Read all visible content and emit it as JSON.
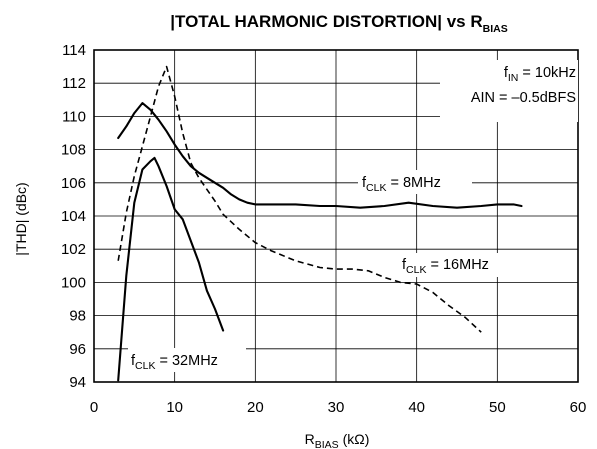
{
  "chart_data": {
    "type": "line",
    "title": {
      "prefix": "|TOTAL HARMONIC DISTORTION| vs R",
      "sub": "BIAS"
    },
    "xlabel": {
      "prefix": "R",
      "sub": "BIAS",
      "suffix": " (kΩ)"
    },
    "ylabel": "|THD| (dBc)",
    "xlim": [
      0,
      60
    ],
    "ylim": [
      94,
      114
    ],
    "x_ticks": [
      0,
      10,
      20,
      30,
      40,
      50,
      60
    ],
    "y_ticks": [
      94,
      96,
      98,
      100,
      102,
      104,
      106,
      108,
      110,
      112,
      114
    ],
    "grid": true,
    "conditions": [
      {
        "prefix": "f",
        "sub": "IN",
        "suffix": " = 10kHz"
      },
      {
        "prefix": "AIN = –0.5dBFS",
        "sub": "",
        "suffix": ""
      }
    ],
    "series": [
      {
        "name": {
          "prefix": "f",
          "sub": "CLK",
          "suffix": " = 8MHz"
        },
        "style": "solid",
        "x": [
          3,
          4,
          5,
          6,
          7,
          8,
          9,
          10,
          11,
          12,
          13,
          14,
          15,
          16,
          17,
          18,
          19,
          20,
          22,
          25,
          28,
          30,
          33,
          36,
          39,
          42,
          45,
          48,
          50,
          52,
          53
        ],
        "y": [
          108.7,
          109.4,
          110.2,
          110.8,
          110.4,
          109.8,
          109.1,
          108.3,
          107.6,
          107.0,
          106.6,
          106.3,
          106.0,
          105.7,
          105.3,
          105.0,
          104.8,
          104.7,
          104.7,
          104.7,
          104.6,
          104.6,
          104.5,
          104.6,
          104.8,
          104.6,
          104.5,
          104.6,
          104.7,
          104.7,
          104.6
        ]
      },
      {
        "name": {
          "prefix": "f",
          "sub": "CLK",
          "suffix": " = 16MHz"
        },
        "style": "dashed",
        "x": [
          3,
          4,
          5,
          6,
          7,
          8,
          9,
          10,
          11,
          12,
          13,
          14,
          15,
          16,
          18,
          20,
          22,
          25,
          28,
          30,
          32,
          34,
          36,
          38,
          40,
          42,
          44,
          46,
          48
        ],
        "y": [
          101.3,
          104.2,
          106.4,
          108.2,
          110.0,
          111.8,
          113.0,
          111.2,
          109.0,
          107.2,
          106.3,
          105.6,
          104.9,
          104.1,
          103.2,
          102.4,
          101.9,
          101.3,
          100.9,
          100.8,
          100.8,
          100.7,
          100.3,
          100.0,
          99.9,
          99.4,
          98.6,
          97.9,
          97.0
        ]
      },
      {
        "name": {
          "prefix": "f",
          "sub": "CLK",
          "suffix": " = 32MHz"
        },
        "style": "solid",
        "x": [
          3,
          4,
          5,
          6,
          7,
          7.5,
          8,
          9,
          10,
          11,
          12,
          13,
          14,
          15,
          16
        ],
        "y": [
          94.1,
          100.4,
          104.8,
          106.8,
          107.3,
          107.5,
          107.0,
          105.8,
          104.4,
          103.8,
          102.5,
          101.2,
          99.5,
          98.4,
          97.1
        ]
      }
    ]
  }
}
